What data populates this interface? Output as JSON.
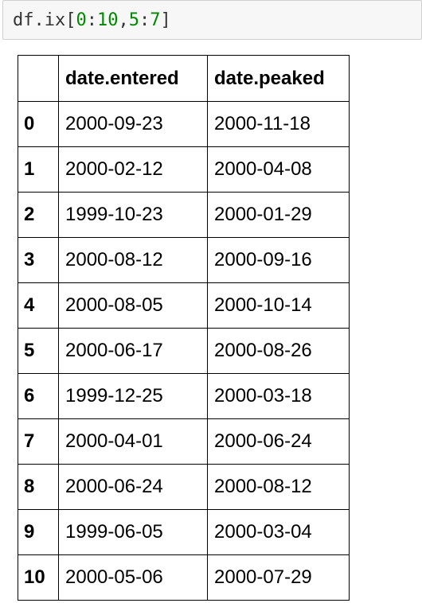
{
  "code_cell": {
    "tokens": {
      "t0": "df.ix[",
      "t1": "0",
      "t2": ":",
      "t3": "10",
      "t4": ",",
      "t5": "5",
      "t6": ":",
      "t7": "7",
      "t8": "]"
    },
    "colors": {
      "number": "#008800",
      "text": "#333333",
      "background": "#f7f7f7"
    }
  },
  "table": {
    "index_header": "",
    "columns": [
      "date.entered",
      "date.peaked"
    ],
    "rows": [
      {
        "index": "0",
        "cells": [
          "2000-09-23",
          "2000-11-18"
        ]
      },
      {
        "index": "1",
        "cells": [
          "2000-02-12",
          "2000-04-08"
        ]
      },
      {
        "index": "2",
        "cells": [
          "1999-10-23",
          "2000-01-29"
        ]
      },
      {
        "index": "3",
        "cells": [
          "2000-08-12",
          "2000-09-16"
        ]
      },
      {
        "index": "4",
        "cells": [
          "2000-08-05",
          "2000-10-14"
        ]
      },
      {
        "index": "5",
        "cells": [
          "2000-06-17",
          "2000-08-26"
        ]
      },
      {
        "index": "6",
        "cells": [
          "1999-12-25",
          "2000-03-18"
        ]
      },
      {
        "index": "7",
        "cells": [
          "2000-04-01",
          "2000-06-24"
        ]
      },
      {
        "index": "8",
        "cells": [
          "2000-06-24",
          "2000-08-12"
        ]
      },
      {
        "index": "9",
        "cells": [
          "1999-06-05",
          "2000-03-04"
        ]
      },
      {
        "index": "10",
        "cells": [
          "2000-05-06",
          "2000-07-29"
        ]
      }
    ]
  }
}
